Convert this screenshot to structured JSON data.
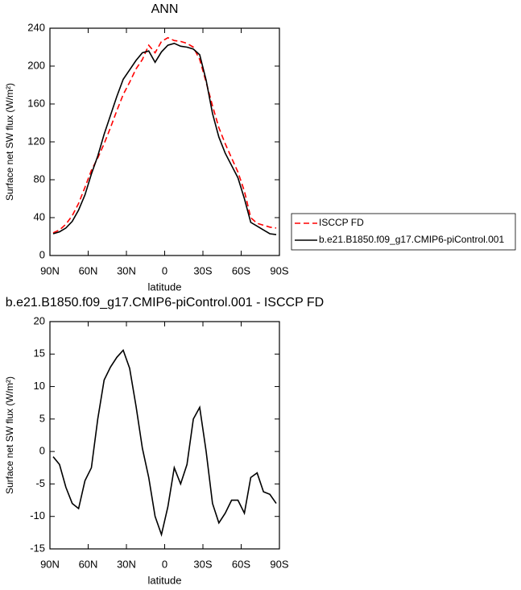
{
  "chart_data": [
    {
      "type": "line",
      "title": "ANN",
      "xlabel": "latitude",
      "ylabel": "Surface net SW flux (W/m²)",
      "x": [
        87.5,
        82.5,
        77.5,
        72.5,
        67.5,
        62.5,
        57.5,
        52.5,
        47.5,
        42.5,
        37.5,
        32.5,
        27.5,
        22.5,
        17.5,
        12.5,
        7.5,
        2.5,
        -2.5,
        -7.5,
        -12.5,
        -17.5,
        -22.5,
        -27.5,
        -32.5,
        -37.5,
        -42.5,
        -47.5,
        -52.5,
        -57.5,
        -62.5,
        -67.5,
        -72.5,
        -77.5,
        -82.5,
        -87.5
      ],
      "series": [
        {
          "name": "ISCCP FD",
          "color": "#ff0000",
          "dash": "dashed",
          "values": [
            24,
            27,
            33,
            42,
            55,
            72,
            90,
            103,
            118,
            135,
            153,
            170,
            183,
            197,
            207,
            222,
            214,
            226,
            230,
            227,
            226,
            224,
            220,
            207,
            183,
            158,
            135,
            118,
            103,
            88,
            68,
            40,
            34,
            32,
            30,
            29
          ]
        },
        {
          "name": "b.e21.B1850.f09_g17.CMIP6-piControl.001",
          "color": "#000000",
          "dash": "solid",
          "values": [
            23,
            25,
            29,
            36,
            48,
            64,
            86,
            105,
            128,
            148,
            168,
            186,
            196,
            206,
            214,
            216,
            204,
            215,
            222,
            224,
            221,
            220,
            218,
            212,
            185,
            150,
            125,
            108,
            95,
            82,
            60,
            35,
            31,
            27,
            23,
            22
          ]
        }
      ],
      "xlim": [
        90,
        -90
      ],
      "ylim": [
        0,
        240
      ],
      "xticks": [
        {
          "value": 90,
          "label": "90N"
        },
        {
          "value": 60,
          "label": "60N"
        },
        {
          "value": 30,
          "label": "30N"
        },
        0,
        {
          "value": -30,
          "label": "30S"
        },
        {
          "value": -60,
          "label": "60S"
        },
        {
          "value": -90,
          "label": "90S"
        }
      ],
      "yticks": [
        0,
        40,
        80,
        120,
        160,
        200,
        240
      ],
      "legend": "right"
    },
    {
      "type": "line",
      "title": "b.e21.B1850.f09_g17.CMIP6-piControl.001 - ISCCP FD",
      "xlabel": "latitude",
      "ylabel": "Surface net SW flux (W/m²)",
      "x": [
        87.5,
        82.5,
        77.5,
        72.5,
        67.5,
        62.5,
        57.5,
        52.5,
        47.5,
        42.5,
        37.5,
        32.5,
        27.5,
        22.5,
        17.5,
        12.5,
        7.5,
        2.5,
        -2.5,
        -7.5,
        -12.5,
        -17.5,
        -22.5,
        -27.5,
        -32.5,
        -37.5,
        -42.5,
        -47.5,
        -52.5,
        -57.5,
        -62.5,
        -67.5,
        -72.5,
        -77.5,
        -82.5,
        -87.5
      ],
      "series": [
        {
          "color": "#000000",
          "dash": "solid",
          "values": [
            -0.8,
            -2,
            -5.5,
            -8,
            -8.8,
            -4.5,
            -2.5,
            5,
            11,
            13,
            14.5,
            15.6,
            12.8,
            7,
            0.5,
            -4,
            -10,
            -12.8,
            -8.5,
            -2.5,
            -5,
            -2,
            5,
            6.8,
            0,
            -8,
            -11,
            -9.5,
            -7.5,
            -7.5,
            -9.5,
            -4,
            -3.3,
            -6.2,
            -6.6,
            -8
          ]
        }
      ],
      "xlim": [
        90,
        -90
      ],
      "ylim": [
        -15,
        20
      ],
      "xticks": [
        {
          "value": 90,
          "label": "90N"
        },
        {
          "value": 60,
          "label": "60N"
        },
        {
          "value": 30,
          "label": "30N"
        },
        0,
        {
          "value": -30,
          "label": "30S"
        },
        {
          "value": -60,
          "label": "60S"
        },
        {
          "value": -90,
          "label": "90S"
        }
      ],
      "yticks": [
        -15,
        -10,
        -5,
        0,
        5,
        10,
        15,
        20
      ]
    }
  ]
}
